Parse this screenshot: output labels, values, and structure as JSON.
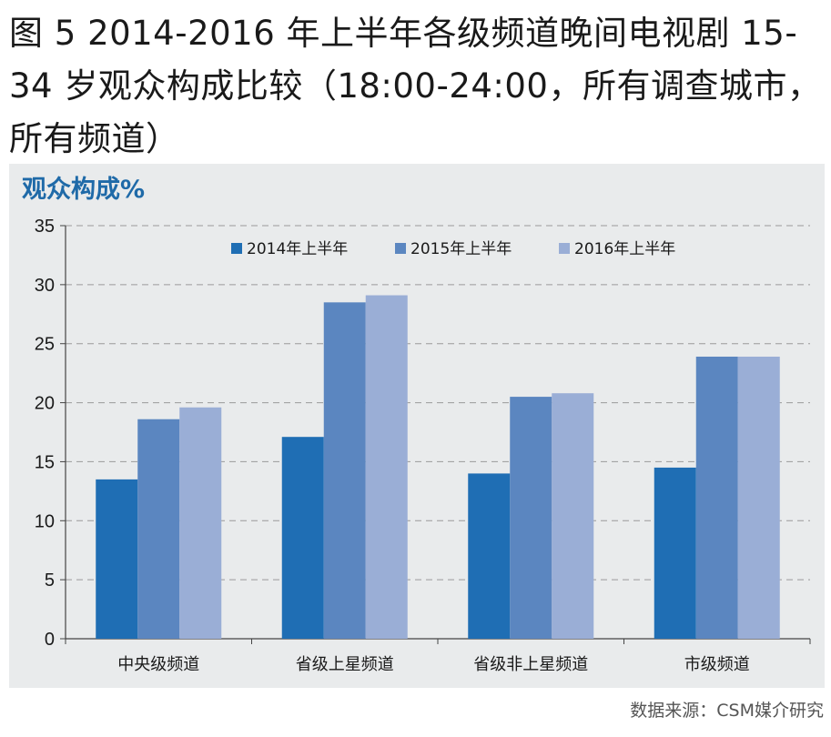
{
  "figure": {
    "title": "图 5  2014-2016 年上半年各级频道晚间电视剧 15-34 岁观众构成比较（18:00-24:00，所有调查城市，所有频道）",
    "source": "数据来源：CSM媒介研究"
  },
  "chart_data": {
    "type": "bar",
    "ylabel": "观众构成%",
    "xlabel": "",
    "ylim": [
      0,
      35
    ],
    "yticks": [
      0,
      5,
      10,
      15,
      20,
      25,
      30,
      35
    ],
    "grid": true,
    "legend_position": "top",
    "categories": [
      "中央级频道",
      "省级上星频道",
      "省级非上星频道",
      "市级频道"
    ],
    "series": [
      {
        "name": "2014年上半年",
        "color": "#1f6eb4",
        "values": [
          13.5,
          17.1,
          14.0,
          14.5
        ]
      },
      {
        "name": "2015年上半年",
        "color": "#5b86c0",
        "values": [
          18.6,
          28.5,
          20.5,
          23.9
        ]
      },
      {
        "name": "2016年上半年",
        "color": "#9aaed6",
        "values": [
          19.6,
          29.1,
          20.8,
          23.9
        ]
      }
    ]
  }
}
